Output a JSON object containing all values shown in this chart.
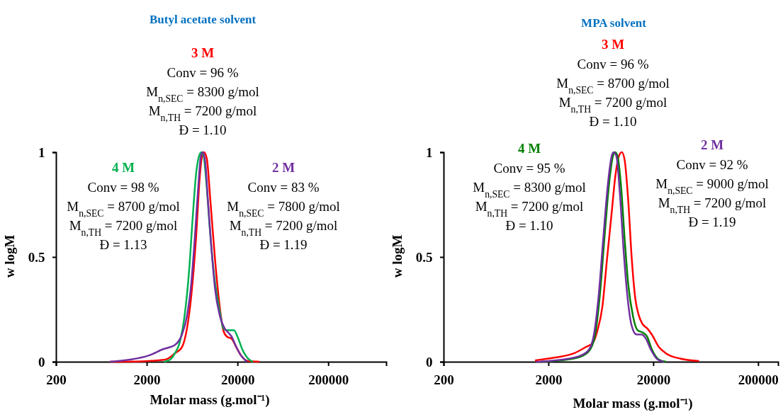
{
  "chart_data": [
    {
      "type": "line",
      "title": "Butyl acetate solvent",
      "xlabel": "Molar mass (g.mol⁻¹)",
      "ylabel": "w logM",
      "log": "x",
      "grid": false,
      "legend": false,
      "marker": "none",
      "line_style": "solid",
      "xlim": [
        200,
        870000
      ],
      "xticks": [
        200,
        2000,
        20000,
        200000
      ],
      "ylim": [
        0,
        1
      ],
      "yticks": [
        0,
        0.5,
        1
      ],
      "series": [
        {
          "name": "3 M",
          "color": "#ff0000",
          "x": [
            785,
            1762,
            3210,
            4085,
            4890,
            5505,
            6210,
            7010,
            7670,
            8130,
            8535,
            9180,
            10050,
            11300,
            12760,
            13960,
            15270,
            17220,
            19400,
            21880,
            26190,
            34910
          ],
          "values": [
            0,
            0.002,
            0.01,
            0.04,
            0.07,
            0.15,
            0.32,
            0.6,
            0.88,
            0.98,
            1.0,
            0.97,
            0.77,
            0.49,
            0.26,
            0.15,
            0.12,
            0.11,
            0.07,
            0.03,
            0.003,
            0
          ]
        },
        {
          "name": "4 M",
          "color": "#00b050",
          "x": [
            3119,
            3622,
            4085,
            4603,
            5190,
            5850,
            6400,
            7010,
            7670,
            8040,
            8475,
            9180,
            10050,
            11300,
            12760,
            13960,
            15270,
            16710,
            18280,
            20000,
            22550,
            26190,
            29560
          ],
          "values": [
            0,
            0.01,
            0.04,
            0.09,
            0.21,
            0.43,
            0.68,
            0.9,
            0.99,
            1.0,
            0.98,
            0.83,
            0.6,
            0.38,
            0.24,
            0.16,
            0.15,
            0.15,
            0.15,
            0.12,
            0.06,
            0.015,
            0
          ]
        },
        {
          "name": "2 M",
          "color": "#7030a0",
          "x": [
            785,
            1306,
            2111,
            3025,
            4085,
            4890,
            5505,
            6210,
            6795,
            7435,
            7890,
            8280,
            8790,
            9445,
            10330,
            11300,
            12760,
            14390,
            15740,
            17220,
            19400,
            21880,
            25410
          ],
          "values": [
            0,
            0.01,
            0.03,
            0.06,
            0.08,
            0.13,
            0.21,
            0.38,
            0.6,
            0.85,
            0.98,
            1.0,
            0.96,
            0.77,
            0.54,
            0.35,
            0.22,
            0.16,
            0.14,
            0.12,
            0.07,
            0.03,
            0
          ]
        }
      ],
      "annotations": [
        "Conv = 96 %\nM$_{n,SEC}$ = 8300 g/mol\nM$_{n,TH}$ = 7200 g/mol\nĐ = 1.10",
        "Conv = 98 %\nM$_{n,SEC}$ = 8700 g/mol\nM$_{n,TH}$ = 7200 g/mol\nĐ = 1.13",
        "Conv = 83 %\nM$_{n,SEC}$ = 7800 g/mol\nM$_{n,TH}$ = 7200 g/mol\nĐ = 1.19"
      ]
    },
    {
      "type": "line",
      "title": "MPA solvent",
      "xlabel": "Molar mass (g.mol⁻¹)",
      "ylabel": "w logM",
      "log": "x",
      "grid": false,
      "legend": false,
      "marker": "none",
      "line_style": "solid",
      "xlim": [
        200,
        310000
      ],
      "xticks": [
        200,
        2000,
        20000,
        200000
      ],
      "ylim": [
        0,
        1
      ],
      "yticks": [
        0,
        0.5,
        1
      ],
      "series": [
        {
          "name": "3 M",
          "color": "#ff0000",
          "x": [
            1489,
            2312,
            3500,
            4540,
            5305,
            5875,
            6530,
            7245,
            8020,
            8670,
            9380,
            10040,
            10690,
            11540,
            12480,
            13490,
            14590,
            15770,
            17460,
            19370,
            22650,
            26480,
            36130,
            54700
          ],
          "values": [
            0.006,
            0.02,
            0.04,
            0.07,
            0.09,
            0.15,
            0.26,
            0.49,
            0.71,
            0.88,
            0.98,
            1.0,
            0.96,
            0.77,
            0.49,
            0.3,
            0.22,
            0.18,
            0.16,
            0.13,
            0.07,
            0.04,
            0.015,
            0.003
          ]
        },
        {
          "name": "4 M",
          "color": "#008000",
          "x": [
            1694,
            2998,
            4305,
            5030,
            5585,
            6195,
            6870,
            7620,
            8240,
            8670,
            9140,
            9885,
            10690,
            11540,
            12790,
            14200,
            15770,
            17460,
            19370,
            22650,
            26480
          ],
          "values": [
            0,
            0.01,
            0.03,
            0.06,
            0.13,
            0.32,
            0.6,
            0.86,
            0.98,
            1.0,
            0.98,
            0.83,
            0.58,
            0.37,
            0.22,
            0.15,
            0.14,
            0.12,
            0.06,
            0.01,
            0
          ]
        },
        {
          "name": "2 M",
          "color": "#7030a0",
          "x": [
            1528,
            2700,
            4090,
            4910,
            5435,
            6040,
            6700,
            7430,
            8020,
            8370,
            8910,
            9620,
            10400,
            11250,
            12480,
            13830,
            15350,
            17030,
            18880,
            22080,
            25120
          ],
          "values": [
            0,
            0.01,
            0.03,
            0.06,
            0.13,
            0.32,
            0.6,
            0.86,
            0.98,
            1.0,
            0.98,
            0.8,
            0.54,
            0.33,
            0.17,
            0.13,
            0.13,
            0.11,
            0.06,
            0.01,
            0
          ]
        }
      ],
      "annotations": [
        "Conv = 96 %\nM$_{n,SEC}$ = 8700 g/mol\nM$_{n,TH}$ = 7200 g/mol\nĐ = 1.10",
        "Conv = 95 %\nM$_{n,SEC}$ = 8300 g/mol\nM$_{n,TH}$ = 7200 g/mol\nĐ = 1.10",
        "Conv = 92 %\nM$_{n,SEC}$ = 9000 g/mol\nM$_{n,TH}$ = 7200 g/mol\nĐ = 1.19"
      ]
    }
  ]
}
